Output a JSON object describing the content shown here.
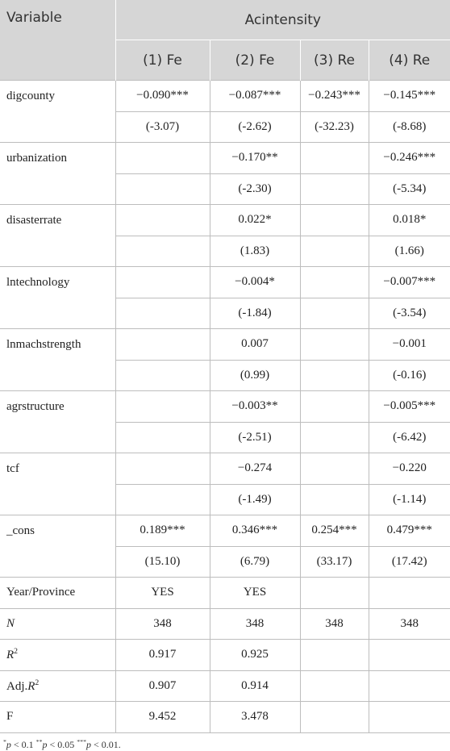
{
  "table": {
    "header": {
      "variable": "Variable",
      "group": "Acintensity",
      "columns": [
        "(1) Fe",
        "(2) Fe",
        "(3) Re",
        "(4) Re"
      ]
    },
    "rows": [
      {
        "label": "digcounty",
        "coef": [
          "−0.090***",
          "−0.087***",
          "−0.243***",
          "−0.145***"
        ],
        "t": [
          "(-3.07)",
          "(-2.62)",
          "(-32.23)",
          "(-8.68)"
        ]
      },
      {
        "label": "urbanization",
        "coef": [
          null,
          "−0.170**",
          null,
          "−0.246***"
        ],
        "t": [
          null,
          "(-2.30)",
          null,
          "(-5.34)"
        ]
      },
      {
        "label": "disasterrate",
        "coef": [
          null,
          "0.022*",
          null,
          "0.018*"
        ],
        "t": [
          null,
          "(1.83)",
          null,
          "(1.66)"
        ]
      },
      {
        "label": "lntechnology",
        "coef": [
          null,
          "−0.004*",
          null,
          "−0.007***"
        ],
        "t": [
          null,
          "(-1.84)",
          null,
          "(-3.54)"
        ]
      },
      {
        "label": "lnmachstrength",
        "coef": [
          null,
          "0.007",
          null,
          "−0.001"
        ],
        "t": [
          null,
          "(0.99)",
          null,
          "(-0.16)"
        ]
      },
      {
        "label": "agrstructure",
        "coef": [
          null,
          "−0.003**",
          null,
          "−0.005***"
        ],
        "t": [
          null,
          "(-2.51)",
          null,
          "(-6.42)"
        ]
      },
      {
        "label": "tcf",
        "coef": [
          null,
          "−0.274",
          null,
          "−0.220"
        ],
        "t": [
          null,
          "(-1.49)",
          null,
          "(-1.14)"
        ]
      },
      {
        "label": "_cons",
        "coef": [
          "0.189***",
          "0.346***",
          "0.254***",
          "0.479***"
        ],
        "t": [
          "(15.10)",
          "(6.79)",
          "(33.17)",
          "(17.42)"
        ]
      }
    ],
    "summary": [
      {
        "label_parts": [
          {
            "text": "Year/Province"
          }
        ],
        "values": [
          "YES",
          "YES",
          null,
          null
        ]
      },
      {
        "label_parts": [
          {
            "text": "N",
            "style": "italic"
          }
        ],
        "values": [
          "348",
          "348",
          "348",
          "348"
        ]
      },
      {
        "label_parts": [
          {
            "text": "R",
            "style": "italic"
          },
          {
            "text": "2",
            "style": "sup"
          }
        ],
        "values": [
          "0.917",
          "0.925",
          null,
          null
        ]
      },
      {
        "label_parts": [
          {
            "text": "Adj."
          },
          {
            "text": "R",
            "style": "italic"
          },
          {
            "text": "2",
            "style": "sup"
          }
        ],
        "values": [
          "0.907",
          "0.914",
          null,
          null
        ]
      },
      {
        "label_parts": [
          {
            "text": "F"
          }
        ],
        "values": [
          "9.452",
          "3.478",
          null,
          null
        ]
      }
    ],
    "footnote": [
      {
        "text": "*",
        "style": "sup"
      },
      {
        "text": "p",
        "style": "italic"
      },
      {
        "text": " < 0.1 "
      },
      {
        "text": "**",
        "style": "sup"
      },
      {
        "text": "p",
        "style": "italic"
      },
      {
        "text": " < 0.05 "
      },
      {
        "text": "***",
        "style": "sup"
      },
      {
        "text": "p",
        "style": "italic"
      },
      {
        "text": " < 0.01."
      }
    ]
  }
}
